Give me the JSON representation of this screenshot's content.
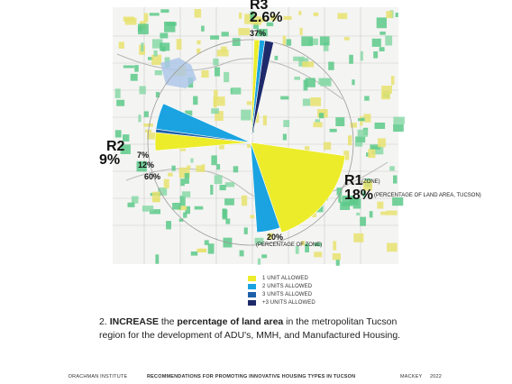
{
  "labels": {
    "r3_name": "R3",
    "r3_pct": "2.6%",
    "r3_slice_pct": "37%",
    "r2_name": "R2",
    "r2_pct": "9%",
    "r2_slice_a": "7%",
    "r2_slice_b": "12%",
    "r2_slice_c": "60%",
    "r1_name": "R1",
    "r1_zone": "(ZONE)",
    "r1_pct": "18%",
    "r1_note": "(PERCENTAGE OF LAND AREA, TUCSON)",
    "r1_slice_pct": "20%",
    "r1_slice_note": "(PERCENTAGE OF ZONE)"
  },
  "legend": [
    {
      "label": "1 UNIT ALLOWED",
      "color": "#ecec2a"
    },
    {
      "label": "2 UNITS ALLOWED",
      "color": "#1aa3e0"
    },
    {
      "label": "3 UNITS ALLOWED",
      "color": "#1d5fa8"
    },
    {
      "label": "+3 UNITS ALLOWED",
      "color": "#1f2a6b"
    }
  ],
  "caption": {
    "num": "2.",
    "w1": "INCREASE",
    "t1": " the ",
    "w2": "percentage of land area",
    "t2": " in the metropolitan Tucson region for the development of ADU's, MMH, and Manufactured Housing."
  },
  "footer": {
    "left": "DRACHMAN INSTITUTE",
    "center": "RECOMMENDATIONS FOR PROMOTING INNOVATIVE HOUSING TYPES IN TUCSON",
    "author": "MACKEY",
    "year": "2022"
  },
  "colors": {
    "yellow": "#ecec2a",
    "cyan": "#1aa3e0",
    "blue": "#1d5fa8",
    "navy": "#1f2a6b",
    "green": "#5cc98a",
    "map_yellow": "#e8e270"
  }
}
